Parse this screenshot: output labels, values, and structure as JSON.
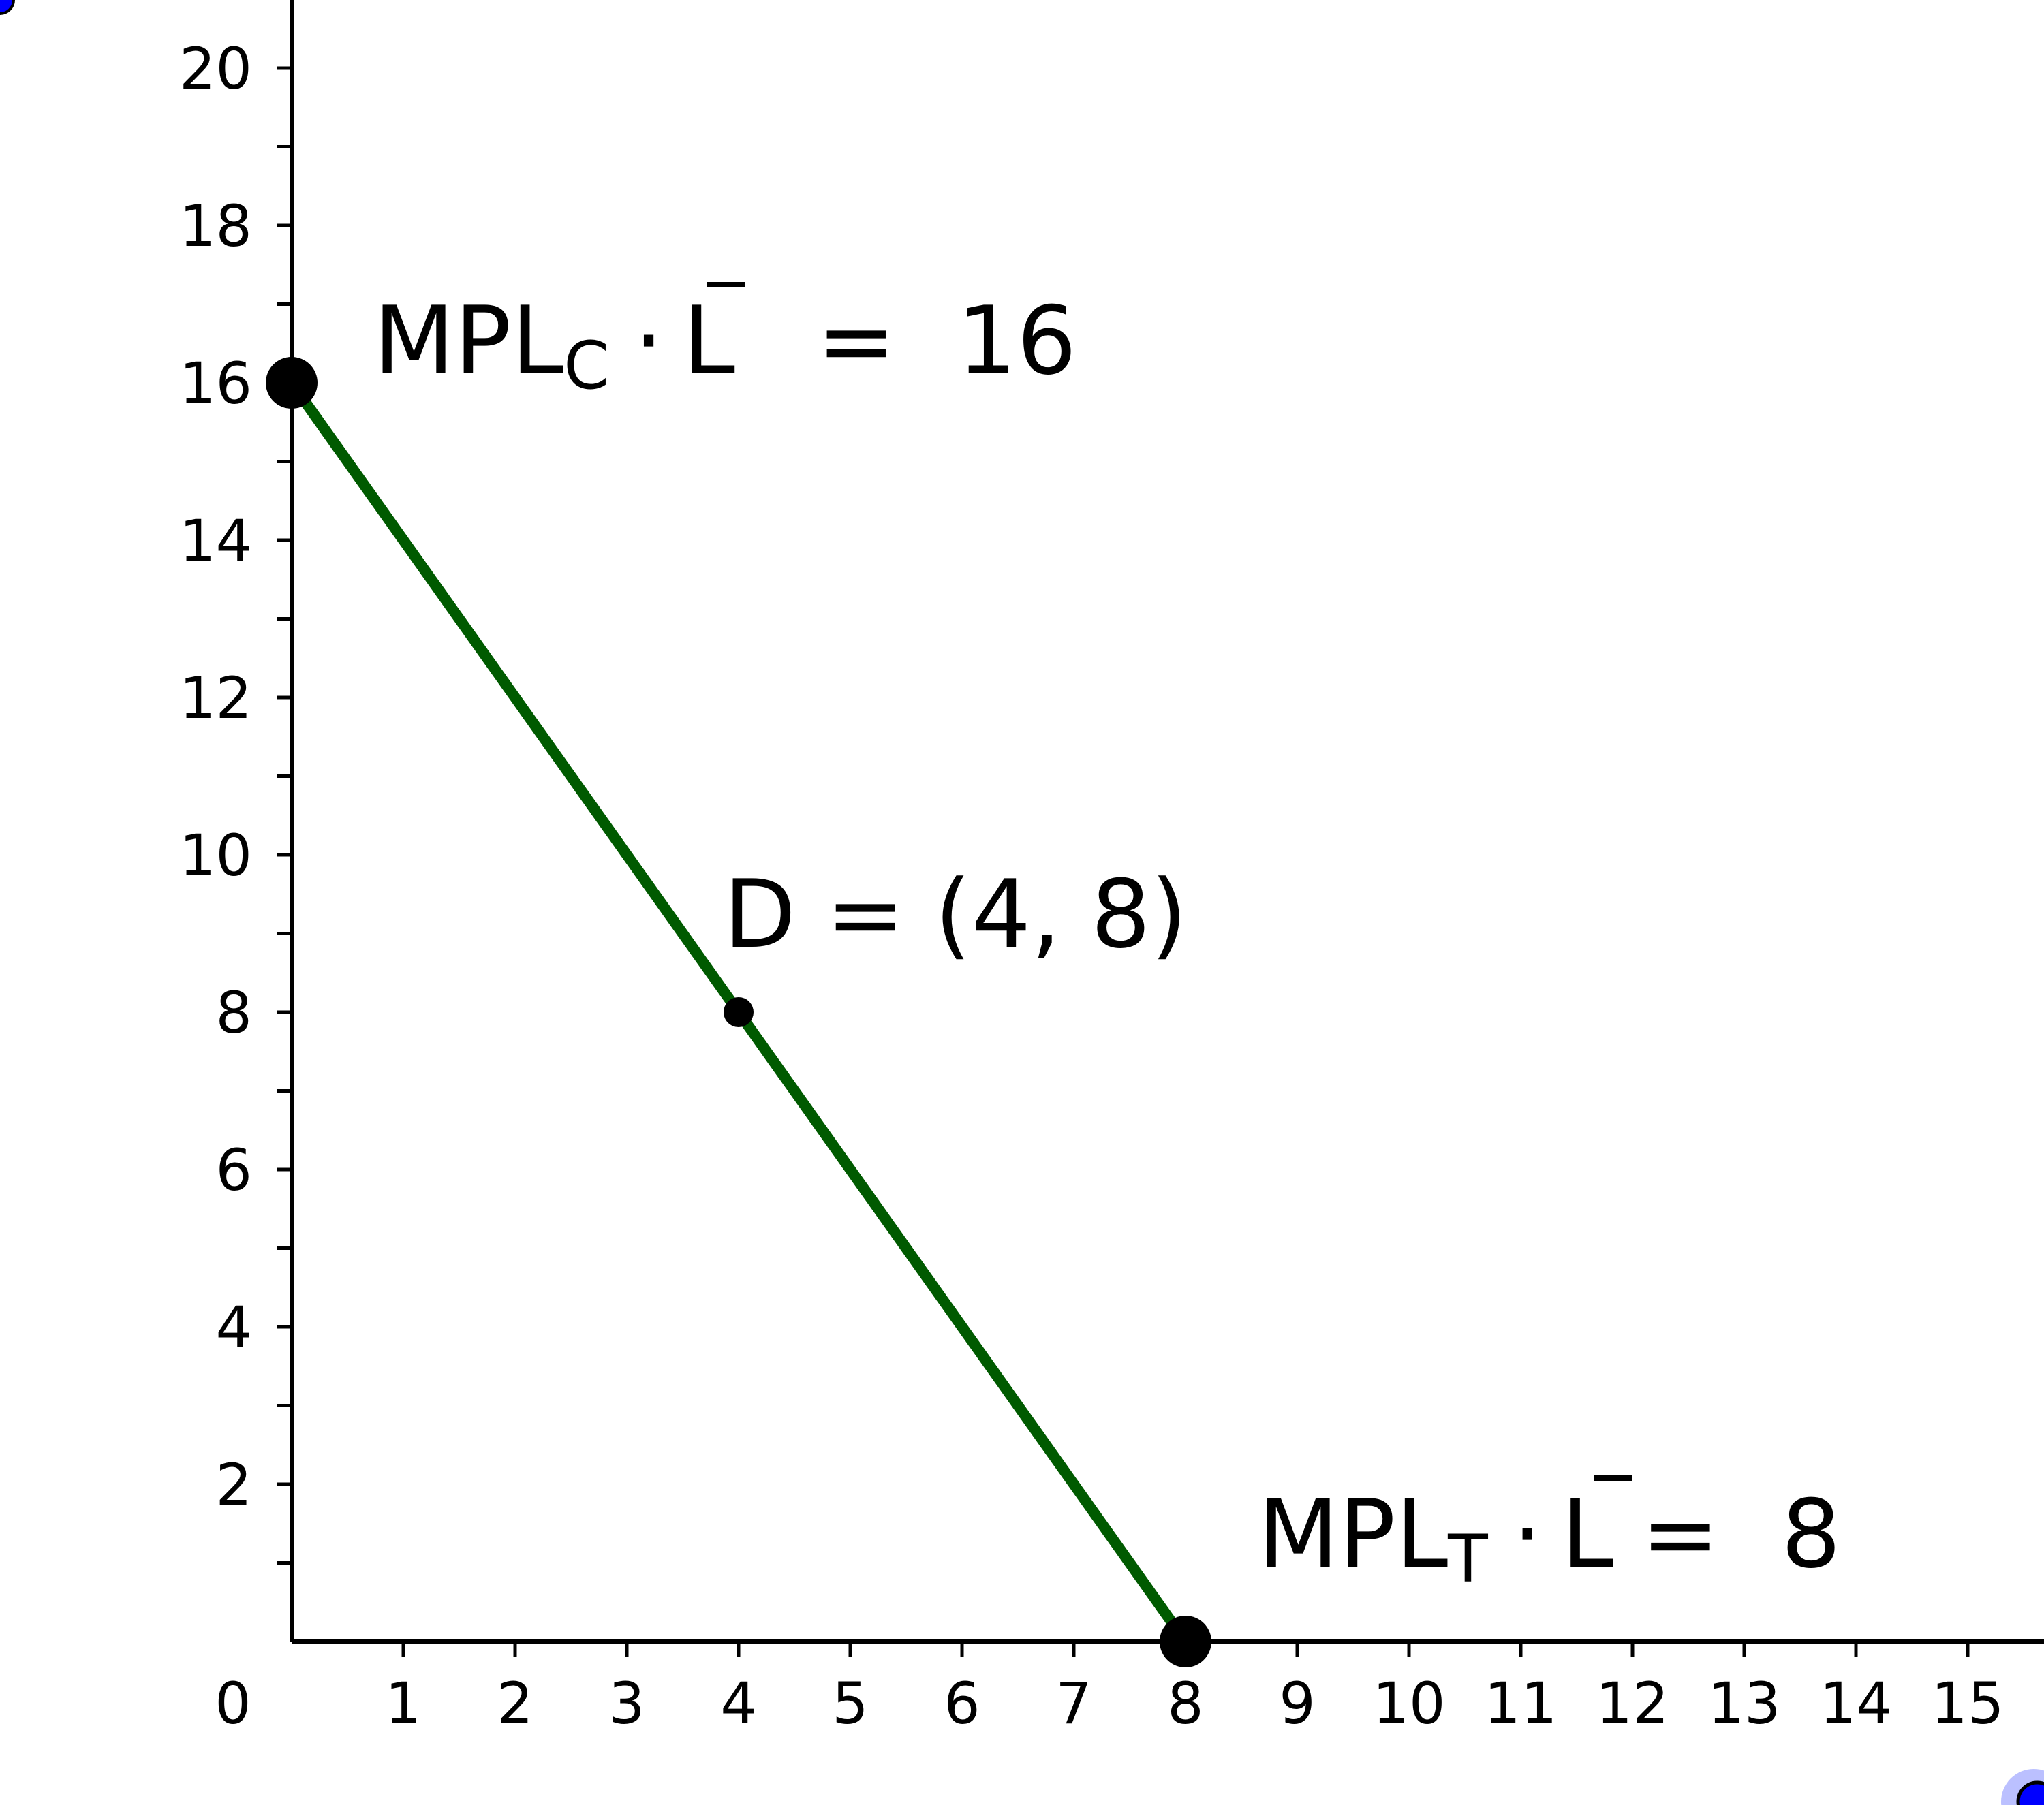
{
  "chart_data": {
    "type": "line",
    "title": "",
    "xlabel": "",
    "ylabel": "",
    "xlim": [
      0,
      15.6
    ],
    "ylim": [
      0,
      21
    ],
    "x_ticks": [
      0,
      1,
      2,
      3,
      4,
      5,
      6,
      7,
      8,
      9,
      10,
      11,
      12,
      13,
      14,
      15
    ],
    "y_ticks": [
      2,
      4,
      6,
      8,
      10,
      12,
      14,
      16,
      18,
      20
    ],
    "y_minor_ticks": [
      1,
      3,
      5,
      7,
      9,
      11,
      13,
      15,
      17,
      19
    ],
    "series": [
      {
        "x": [
          0,
          8
        ],
        "y": [
          16,
          0
        ],
        "color": "#005a00"
      }
    ],
    "points": [
      {
        "x": 0,
        "y": 16,
        "size": "large"
      },
      {
        "x": 4,
        "y": 8,
        "size": "small"
      },
      {
        "x": 8,
        "y": 0,
        "size": "large"
      }
    ],
    "annotations": {
      "top": {
        "main": "MPL",
        "sub": "C",
        "dot": "·",
        "bar": "L",
        "eq": "=",
        "value": "16"
      },
      "mid": {
        "text": "D = (4, 8)"
      },
      "bottom": {
        "main": "MPL",
        "sub": "T",
        "dot": "·",
        "bar": "L",
        "eq": "=",
        "value": "8"
      }
    },
    "grid": false,
    "colors": {
      "line": "#005a00",
      "points": "#000000",
      "handles": "#0000ff"
    }
  }
}
